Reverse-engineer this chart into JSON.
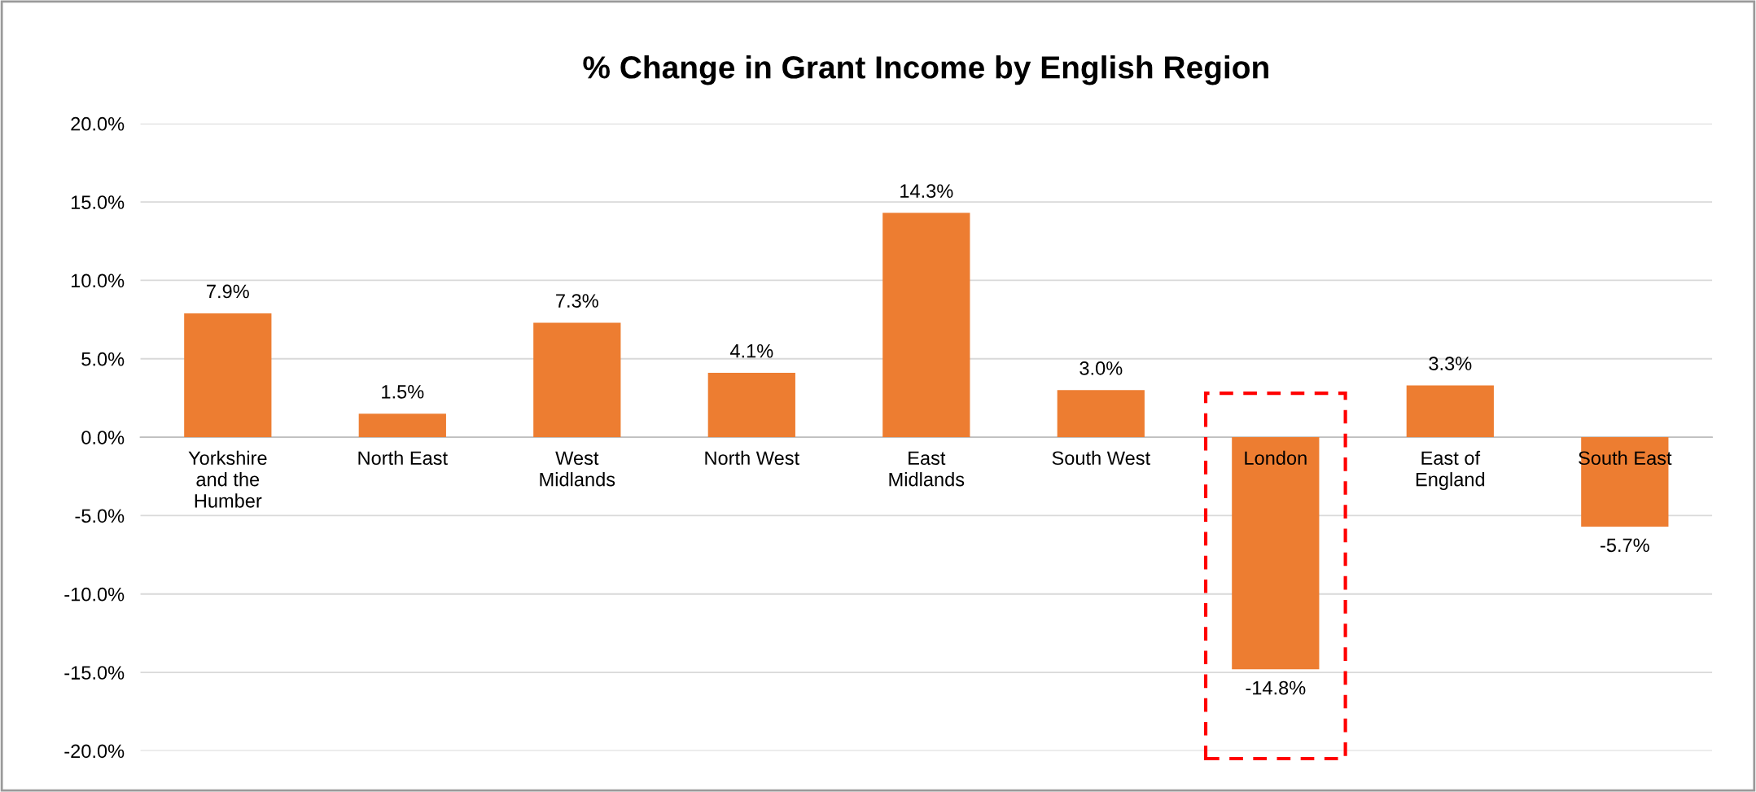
{
  "chart_data": {
    "type": "bar",
    "title": "% Change in Grant Income by English Region",
    "categories": [
      "Yorkshire\nand the\nHumber",
      "North East",
      "West\nMidlands",
      "North West",
      "East\nMidlands",
      "South West",
      "London",
      "East of\nEngland",
      "South East"
    ],
    "values": [
      7.9,
      1.5,
      7.3,
      4.1,
      14.3,
      3.0,
      -14.8,
      3.3,
      -5.7
    ],
    "value_labels": [
      "7.9%",
      "1.5%",
      "7.3%",
      "4.1%",
      "14.3%",
      "3.0%",
      "-14.8%",
      "3.3%",
      "-5.7%"
    ],
    "color": "#ed7d31",
    "ylim": [
      -20,
      20
    ],
    "yticks": [
      {
        "value": -20,
        "label": "-20.0%"
      },
      {
        "value": -15,
        "label": "-15.0%"
      },
      {
        "value": -10,
        "label": "-10.0%"
      },
      {
        "value": -5,
        "label": "-5.0%"
      },
      {
        "value": 0,
        "label": "0.0%"
      },
      {
        "value": 5,
        "label": "5.0%"
      },
      {
        "value": 10,
        "label": "10.0%"
      },
      {
        "value": 15,
        "label": "15.0%"
      },
      {
        "value": 20,
        "label": "20.0%"
      }
    ],
    "grid": "y"
  }
}
